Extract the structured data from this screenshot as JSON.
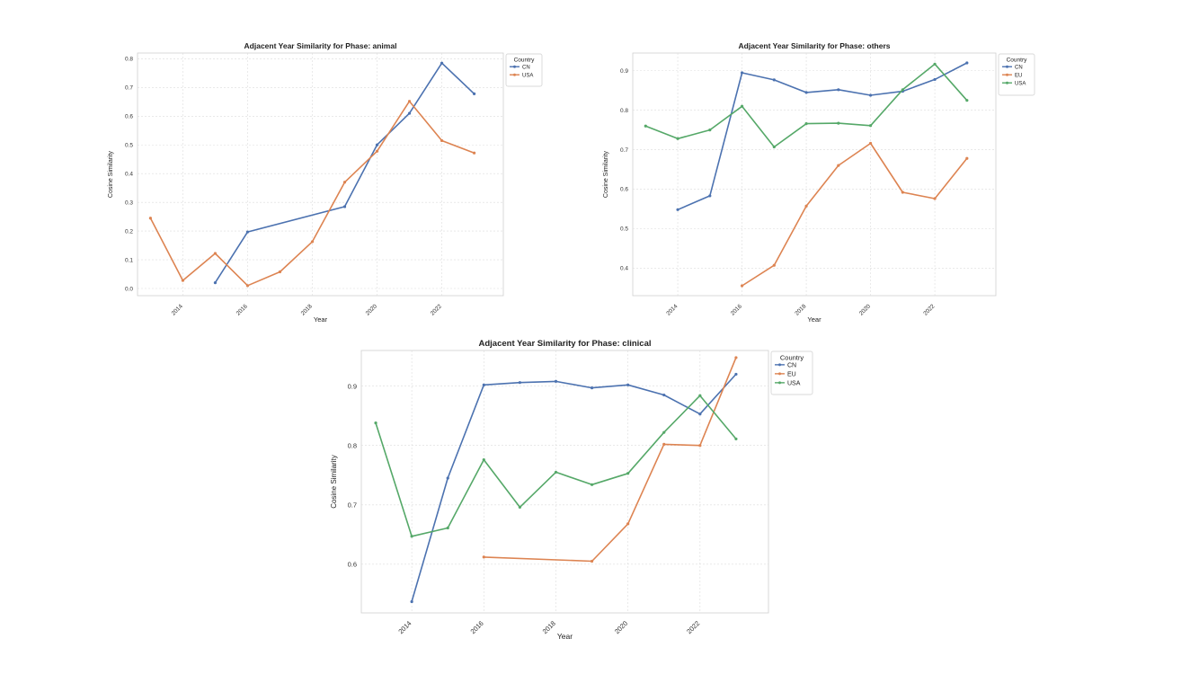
{
  "colors": {
    "CN": "#4c72b0",
    "EU": "#dd8452",
    "USA": "#55a868"
  },
  "chart_data": [
    {
      "type": "line",
      "title": "Adjacent Year Similarity for Phase: animal",
      "xlabel": "Year",
      "ylabel": "Cosine Similarity",
      "xlim": [
        2012.6,
        2023.9
      ],
      "ylim": [
        -0.025,
        0.82
      ],
      "xticks": [
        2014,
        2016,
        2018,
        2020,
        2022
      ],
      "yticks": [
        0.0,
        0.1,
        0.2,
        0.3,
        0.4,
        0.5,
        0.6,
        0.7,
        0.8
      ],
      "ytick_labels": [
        "0.0",
        "0.1",
        "0.2",
        "0.3",
        "0.4",
        "0.5",
        "0.6",
        "0.7",
        "0.8"
      ],
      "grid": true,
      "legend": {
        "title": "Country",
        "placement": "outside-top-right"
      },
      "series": [
        {
          "name": "CN",
          "color_key": "CN",
          "points": [
            [
              2015,
              0.02
            ],
            [
              2016,
              0.197
            ],
            [
              2019,
              0.285
            ],
            [
              2020,
              0.5
            ],
            [
              2021,
              0.61
            ],
            [
              2022,
              0.785
            ],
            [
              2023,
              0.678
            ]
          ]
        },
        {
          "name": "USA",
          "color_key": "USA_animal",
          "points": [
            [
              2013,
              0.245
            ],
            [
              2014,
              0.028
            ],
            [
              2015,
              0.122
            ],
            [
              2016,
              0.01
            ],
            [
              2017,
              0.058
            ],
            [
              2018,
              0.163
            ],
            [
              2019,
              0.37
            ],
            [
              2020,
              0.478
            ],
            [
              2021,
              0.652
            ],
            [
              2022,
              0.515
            ],
            [
              2023,
              0.472
            ]
          ]
        }
      ]
    },
    {
      "type": "line",
      "title": "Adjacent Year Similarity for Phase: others",
      "xlabel": "Year",
      "ylabel": "Cosine Similarity",
      "xlim": [
        2012.6,
        2023.9
      ],
      "ylim": [
        0.33,
        0.945
      ],
      "xticks": [
        2014,
        2016,
        2018,
        2020,
        2022
      ],
      "yticks": [
        0.4,
        0.5,
        0.6,
        0.7,
        0.8,
        0.9
      ],
      "ytick_labels": [
        "0.4",
        "0.5",
        "0.6",
        "0.7",
        "0.8",
        "0.9"
      ],
      "grid": true,
      "legend": {
        "title": "Country",
        "placement": "outside-top-right"
      },
      "series": [
        {
          "name": "CN",
          "color_key": "CN",
          "points": [
            [
              2014,
              0.548
            ],
            [
              2015,
              0.583
            ],
            [
              2016,
              0.895
            ],
            [
              2017,
              0.877
            ],
            [
              2018,
              0.845
            ],
            [
              2019,
              0.852
            ],
            [
              2020,
              0.838
            ],
            [
              2021,
              0.848
            ],
            [
              2022,
              0.878
            ],
            [
              2023,
              0.92
            ]
          ]
        },
        {
          "name": "EU",
          "color_key": "EU",
          "points": [
            [
              2016,
              0.355
            ],
            [
              2017,
              0.407
            ],
            [
              2018,
              0.557
            ],
            [
              2019,
              0.66
            ],
            [
              2020,
              0.716
            ],
            [
              2021,
              0.592
            ],
            [
              2022,
              0.576
            ],
            [
              2023,
              0.678
            ]
          ]
        },
        {
          "name": "USA",
          "color_key": "USA",
          "points": [
            [
              2013,
              0.76
            ],
            [
              2014,
              0.728
            ],
            [
              2015,
              0.75
            ],
            [
              2016,
              0.81
            ],
            [
              2017,
              0.707
            ],
            [
              2018,
              0.766
            ],
            [
              2019,
              0.767
            ],
            [
              2020,
              0.761
            ],
            [
              2021,
              0.852
            ],
            [
              2022,
              0.917
            ],
            [
              2023,
              0.825
            ]
          ]
        }
      ]
    },
    {
      "type": "line",
      "title": "Adjacent Year Similarity for Phase: clinical",
      "xlabel": "Year",
      "ylabel": "Cosine Similarity",
      "xlim": [
        2012.6,
        2023.9
      ],
      "ylim": [
        0.518,
        0.96
      ],
      "xticks": [
        2014,
        2016,
        2018,
        2020,
        2022
      ],
      "yticks": [
        0.6,
        0.7,
        0.8,
        0.9
      ],
      "ytick_labels": [
        "0.6",
        "0.7",
        "0.8",
        "0.9"
      ],
      "grid": true,
      "legend": {
        "title": "Country",
        "placement": "outside-top-right"
      },
      "series": [
        {
          "name": "CN",
          "color_key": "CN",
          "points": [
            [
              2014,
              0.537
            ],
            [
              2015,
              0.745
            ],
            [
              2016,
              0.902
            ],
            [
              2017,
              0.906
            ],
            [
              2018,
              0.908
            ],
            [
              2019,
              0.897
            ],
            [
              2020,
              0.902
            ],
            [
              2021,
              0.885
            ],
            [
              2022,
              0.853
            ],
            [
              2023,
              0.92
            ]
          ]
        },
        {
          "name": "EU",
          "color_key": "EU",
          "points": [
            [
              2016,
              0.612
            ],
            [
              2019,
              0.605
            ],
            [
              2020,
              0.668
            ],
            [
              2021,
              0.802
            ],
            [
              2022,
              0.8
            ],
            [
              2023,
              0.948
            ]
          ]
        },
        {
          "name": "USA",
          "color_key": "USA",
          "points": [
            [
              2013,
              0.838
            ],
            [
              2014,
              0.647
            ],
            [
              2015,
              0.661
            ],
            [
              2016,
              0.776
            ],
            [
              2017,
              0.696
            ],
            [
              2018,
              0.755
            ],
            [
              2019,
              0.734
            ],
            [
              2020,
              0.753
            ],
            [
              2021,
              0.822
            ],
            [
              2022,
              0.884
            ],
            [
              2023,
              0.811
            ]
          ]
        }
      ]
    }
  ]
}
